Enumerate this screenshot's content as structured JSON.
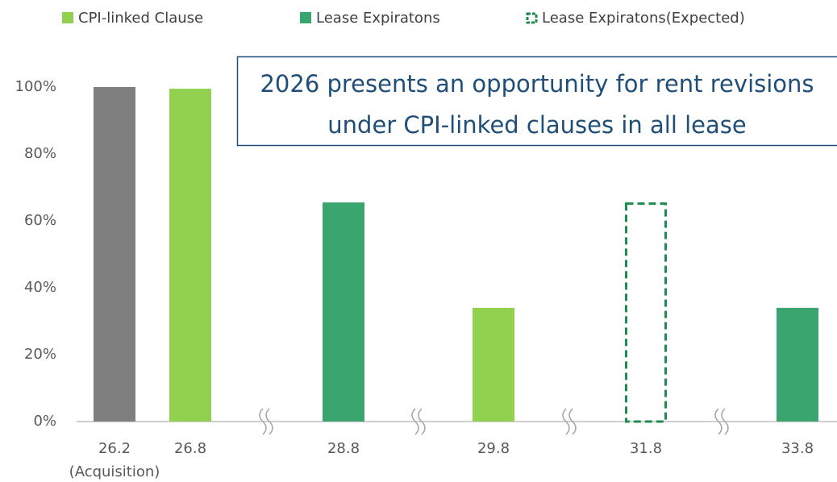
{
  "chart_data": {
    "type": "bar",
    "categories": [
      "26.2",
      "26.8",
      "28.8",
      "29.8",
      "31.8",
      "33.8"
    ],
    "category_note": "(Acquisition)",
    "annotation": [
      "2026 presents an opportunity for rent revisions",
      "under CPI-linked clauses in all lease"
    ],
    "series": [
      {
        "color": "#7f7f7f",
        "values": [
          100,
          null,
          null,
          null,
          null,
          null
        ]
      },
      {
        "name": "CPI-linked Clause",
        "color": "#92d050",
        "values": [
          null,
          99.5,
          null,
          34,
          null,
          null
        ]
      },
      {
        "name": "Lease Expiratons",
        "color": "#3aa56f",
        "values": [
          null,
          null,
          65.5,
          null,
          null,
          34
        ]
      },
      {
        "name": "Lease Expiratons(Expected)",
        "color": "#1e8c4e",
        "style": "dashed",
        "values": [
          null,
          null,
          null,
          null,
          65.5,
          null
        ]
      }
    ],
    "ylim": [
      0,
      100
    ],
    "yticks": [
      {
        "value": 0,
        "label": "0%"
      },
      {
        "value": 20,
        "label": "20%"
      },
      {
        "value": 40,
        "label": "40%"
      },
      {
        "value": 60,
        "label": "60%"
      },
      {
        "value": 80,
        "label": "80%"
      },
      {
        "value": 100,
        "label": "100%"
      }
    ],
    "grid": false
  }
}
